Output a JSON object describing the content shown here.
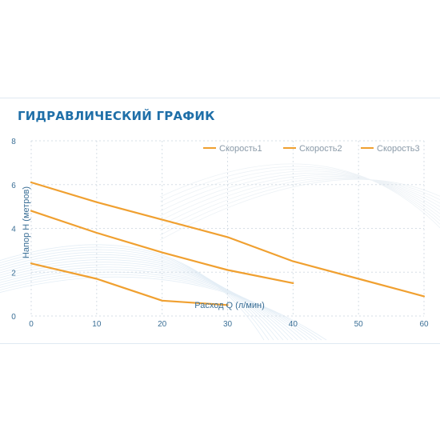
{
  "title": "ГИДРАВЛИЧЕСКИЙ ГРАФИК",
  "colors": {
    "series": "#f0a030",
    "grid": "#d6dee6",
    "title": "#1f6fa8",
    "ticks": "#3b6f96"
  },
  "chart_data": {
    "type": "line",
    "title": "ГИДРАВЛИЧЕСКИЙ ГРАФИК",
    "xlabel": "Расход Q (л/мин)",
    "ylabel": "Напор H (метров)",
    "xlim": [
      0,
      60
    ],
    "ylim": [
      0,
      8
    ],
    "xticks": [
      0,
      10,
      20,
      30,
      40,
      50,
      60
    ],
    "yticks": [
      0,
      2,
      4,
      6,
      8
    ],
    "grid": true,
    "legend": "top-right",
    "series": [
      {
        "name": "Скорость1",
        "x": [
          0,
          10,
          20,
          30
        ],
        "y": [
          2.4,
          1.7,
          0.7,
          0.5
        ]
      },
      {
        "name": "Скорость2",
        "x": [
          0,
          10,
          20,
          30,
          40
        ],
        "y": [
          4.8,
          3.8,
          2.9,
          2.1,
          1.5
        ]
      },
      {
        "name": "Скорость3",
        "x": [
          0,
          10,
          20,
          30,
          40,
          50,
          60
        ],
        "y": [
          6.1,
          5.2,
          4.4,
          3.6,
          2.5,
          1.7,
          0.9
        ]
      }
    ]
  }
}
